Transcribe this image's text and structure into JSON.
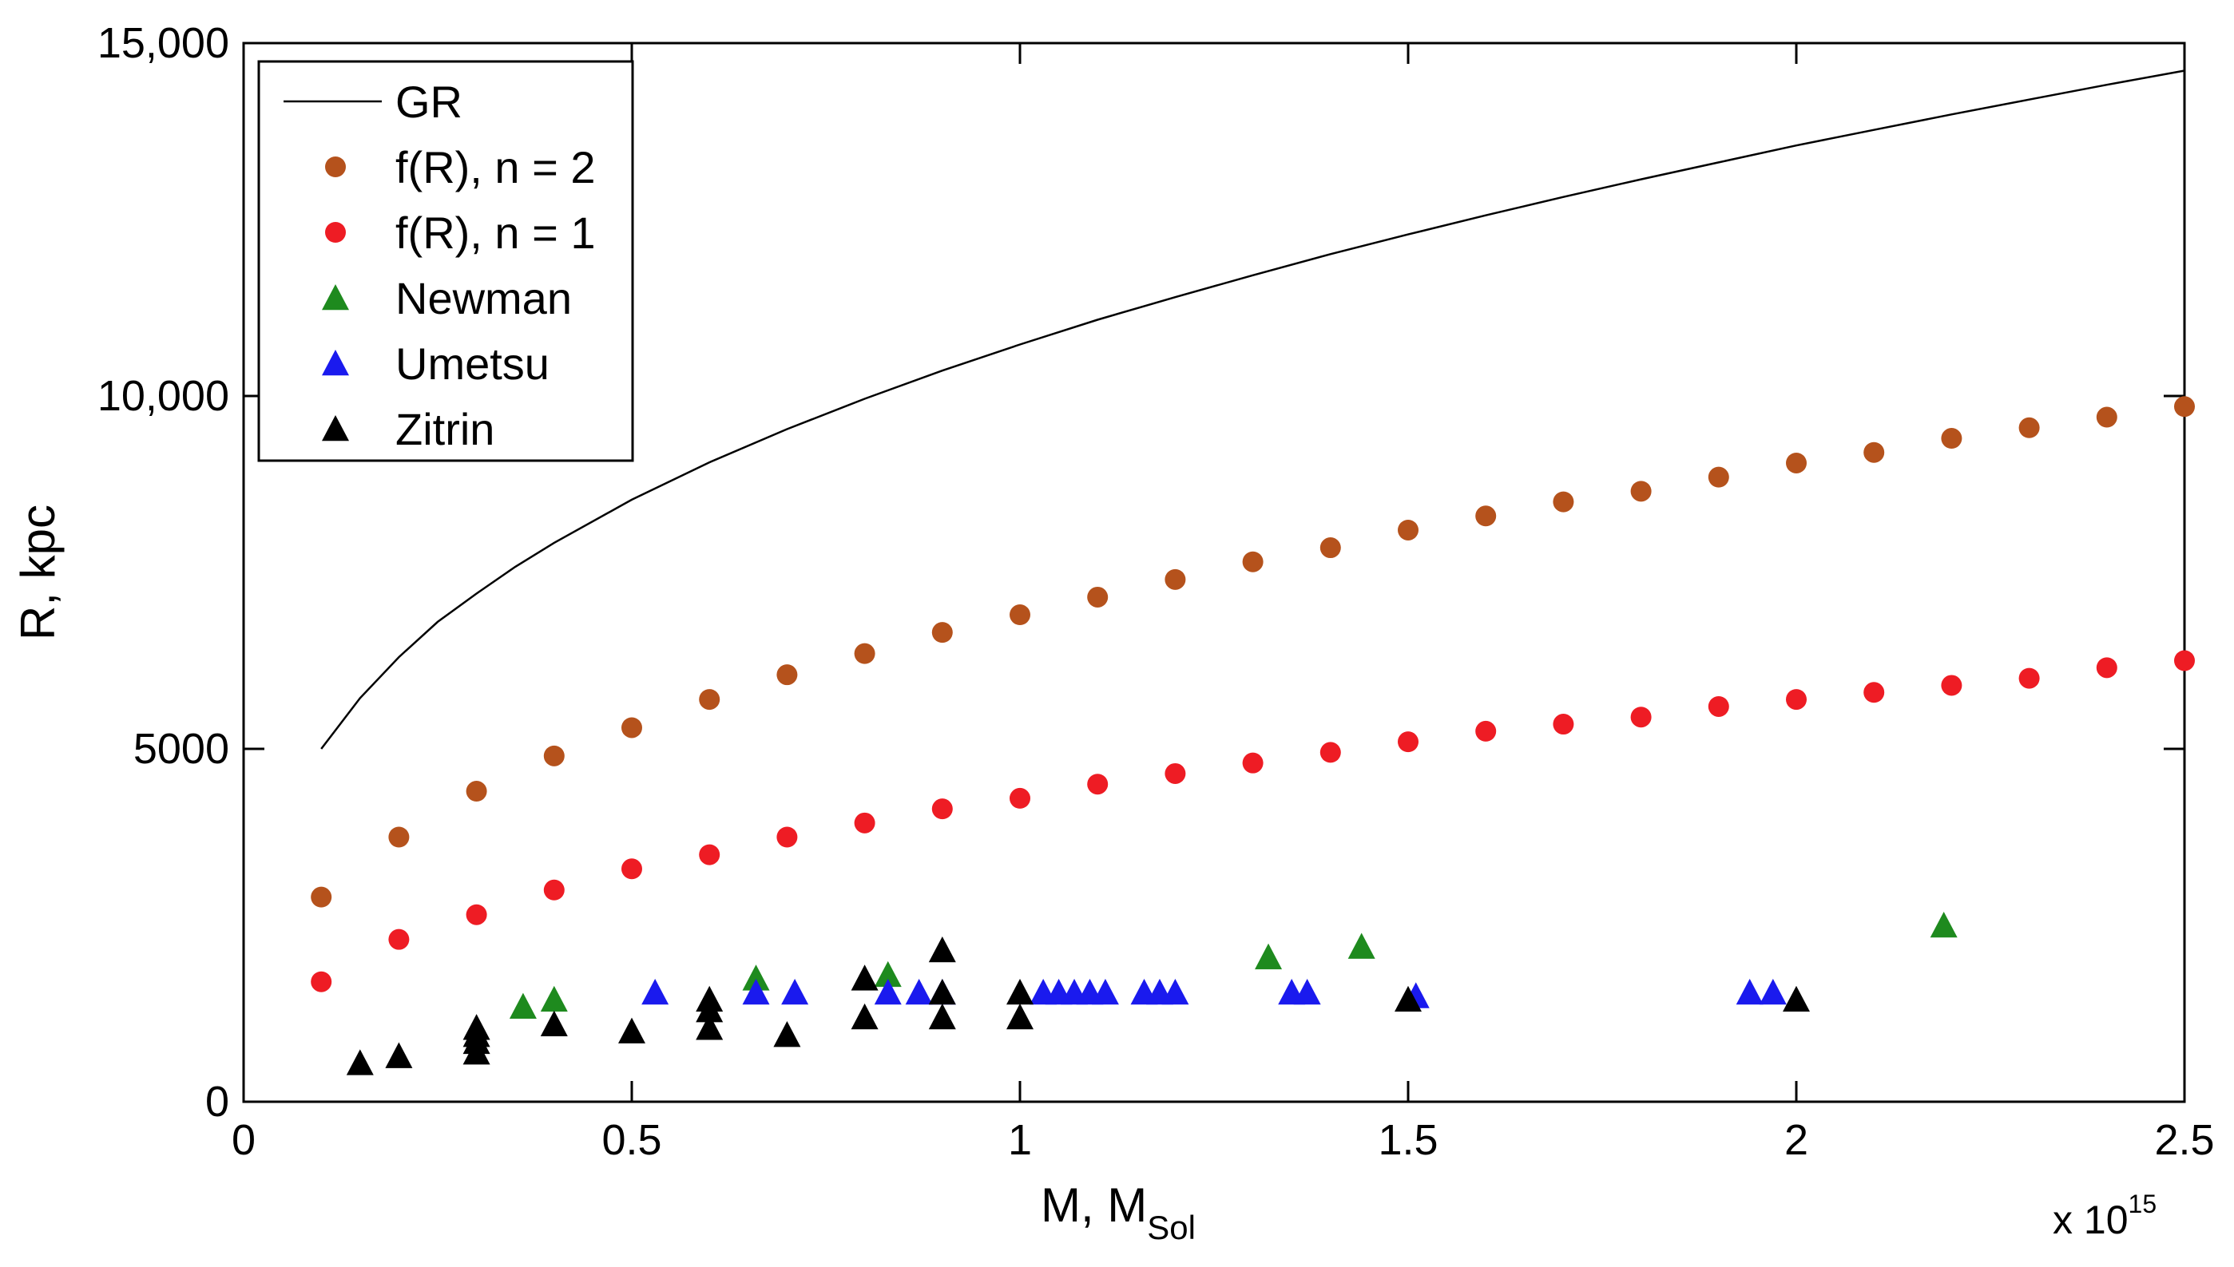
{
  "chart_data": {
    "type": "scatter",
    "title": "",
    "xlabel": "M, M",
    "xlabel_subscript": "Sol",
    "ylabel": "R, kpc",
    "x_multiplier_label": "x 10",
    "x_multiplier_exponent": "15",
    "xlim": [
      0,
      2.5
    ],
    "ylim": [
      0,
      15000
    ],
    "x_ticks": [
      0,
      0.5,
      1,
      1.5,
      2,
      2.5
    ],
    "x_tick_labels": [
      "0",
      "0.5",
      "1",
      "1.5",
      "2",
      "2.5"
    ],
    "y_ticks": [
      0,
      5000,
      10000,
      15000
    ],
    "y_tick_labels": [
      "0",
      "5000",
      "10,000",
      "15,000"
    ],
    "grid": false,
    "legend_position": "top-left",
    "series": [
      {
        "name": "GR",
        "style": "line",
        "color": "#000000",
        "x": [
          0.1,
          0.15,
          0.2,
          0.25,
          0.3,
          0.35,
          0.4,
          0.5,
          0.6,
          0.7,
          0.8,
          0.9,
          1.0,
          1.1,
          1.2,
          1.3,
          1.4,
          1.5,
          1.6,
          1.7,
          1.8,
          1.9,
          2.0,
          2.1,
          2.2,
          2.3,
          2.4,
          2.5
        ],
        "y": [
          5000,
          5720,
          6300,
          6800,
          7200,
          7580,
          7920,
          8530,
          9060,
          9530,
          9960,
          10360,
          10730,
          11080,
          11400,
          11710,
          12010,
          12290,
          12560,
          12820,
          13070,
          13310,
          13550,
          13770,
          13990,
          14200,
          14410,
          14610
        ]
      },
      {
        "name": "f(R), n = 2",
        "style": "circle",
        "color": "#b5521c",
        "x": [
          0.1,
          0.2,
          0.3,
          0.4,
          0.5,
          0.6,
          0.7,
          0.8,
          0.9,
          1.0,
          1.1,
          1.2,
          1.3,
          1.4,
          1.5,
          1.6,
          1.7,
          1.8,
          1.9,
          2.0,
          2.1,
          2.2,
          2.3,
          2.4,
          2.5
        ],
        "y": [
          2900,
          3750,
          4400,
          4900,
          5300,
          5700,
          6050,
          6350,
          6650,
          6900,
          7150,
          7400,
          7650,
          7850,
          8100,
          8300,
          8500,
          8650,
          8850,
          9050,
          9200,
          9400,
          9550,
          9700,
          9850
        ]
      },
      {
        "name": "f(R), n = 1",
        "style": "circle",
        "color": "#ee1c24",
        "x": [
          0.1,
          0.2,
          0.3,
          0.4,
          0.5,
          0.6,
          0.7,
          0.8,
          0.9,
          1.0,
          1.1,
          1.2,
          1.3,
          1.4,
          1.5,
          1.6,
          1.7,
          1.8,
          1.9,
          2.0,
          2.1,
          2.2,
          2.3,
          2.4,
          2.5
        ],
        "y": [
          1700,
          2300,
          2650,
          3000,
          3300,
          3500,
          3750,
          3950,
          4150,
          4300,
          4500,
          4650,
          4800,
          4950,
          5100,
          5250,
          5350,
          5450,
          5600,
          5700,
          5800,
          5900,
          6000,
          6150,
          6250
        ]
      },
      {
        "name": "Newman",
        "style": "triangle",
        "color": "#1e8a1e",
        "x": [
          0.36,
          0.4,
          0.66,
          0.83,
          1.32,
          1.44,
          2.19
        ],
        "y": [
          1350,
          1450,
          1750,
          1800,
          2050,
          2200,
          2500
        ]
      },
      {
        "name": "Umetsu",
        "style": "triangle",
        "color": "#1a1aee",
        "x": [
          0.53,
          0.66,
          0.71,
          0.83,
          0.87,
          0.9,
          1.03,
          1.05,
          1.07,
          1.09,
          1.11,
          1.16,
          1.18,
          1.2,
          1.35,
          1.37,
          1.51,
          1.94,
          1.97
        ],
        "y": [
          1550,
          1550,
          1550,
          1550,
          1550,
          1550,
          1550,
          1550,
          1550,
          1550,
          1550,
          1550,
          1550,
          1550,
          1550,
          1550,
          1500,
          1550,
          1550
        ]
      },
      {
        "name": "Zitrin",
        "style": "triangle",
        "color": "#000000",
        "x": [
          0.15,
          0.2,
          0.3,
          0.3,
          0.3,
          0.3,
          0.4,
          0.5,
          0.6,
          0.6,
          0.6,
          0.7,
          0.8,
          0.8,
          0.9,
          0.9,
          0.9,
          1.0,
          1.0,
          1.5,
          2.0
        ],
        "y": [
          550,
          650,
          700,
          850,
          950,
          1050,
          1100,
          1000,
          1050,
          1300,
          1450,
          950,
          1200,
          1750,
          1200,
          1550,
          2150,
          1200,
          1550,
          1450,
          1450
        ]
      }
    ]
  }
}
